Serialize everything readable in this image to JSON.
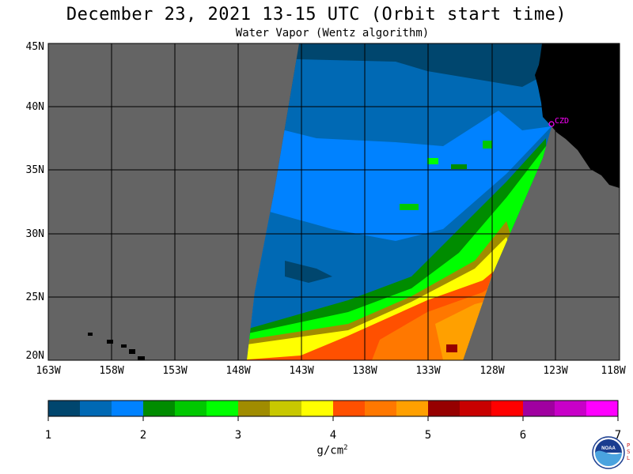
{
  "header": {
    "title": "December 23, 2021  13-15 UTC  (Orbit start time)",
    "subtitle": "Water Vapor (Wentz algorithm)"
  },
  "map": {
    "lat_labels": [
      "45N",
      "40N",
      "35N",
      "30N",
      "25N",
      "20N"
    ],
    "lon_labels": [
      "163W",
      "158W",
      "153W",
      "148W",
      "143W",
      "138W",
      "133W",
      "128W",
      "123W",
      "118W"
    ],
    "station_label": "CZD",
    "colors": {
      "land": "#000000",
      "no_data": "#646464",
      "grid": "#000000",
      "station": "#ff00ff"
    }
  },
  "colorbar": {
    "tick_labels": [
      "1",
      "2",
      "3",
      "4",
      "5",
      "6",
      "7"
    ],
    "unit_main": "g/cm",
    "unit_sup": "2",
    "colors": [
      "#00466e",
      "#0069b4",
      "#0082ff",
      "#008c00",
      "#00c800",
      "#00ff00",
      "#a08c00",
      "#c8c800",
      "#ffff00",
      "#ff5000",
      "#ff7800",
      "#ffa000",
      "#960000",
      "#c80000",
      "#ff0000",
      "#a000a0",
      "#c800c8",
      "#ff00ff"
    ]
  },
  "logo": {
    "name": "noaa-logo",
    "text": "NOAA",
    "psl_letters": [
      "P",
      "S",
      "L"
    ]
  }
}
